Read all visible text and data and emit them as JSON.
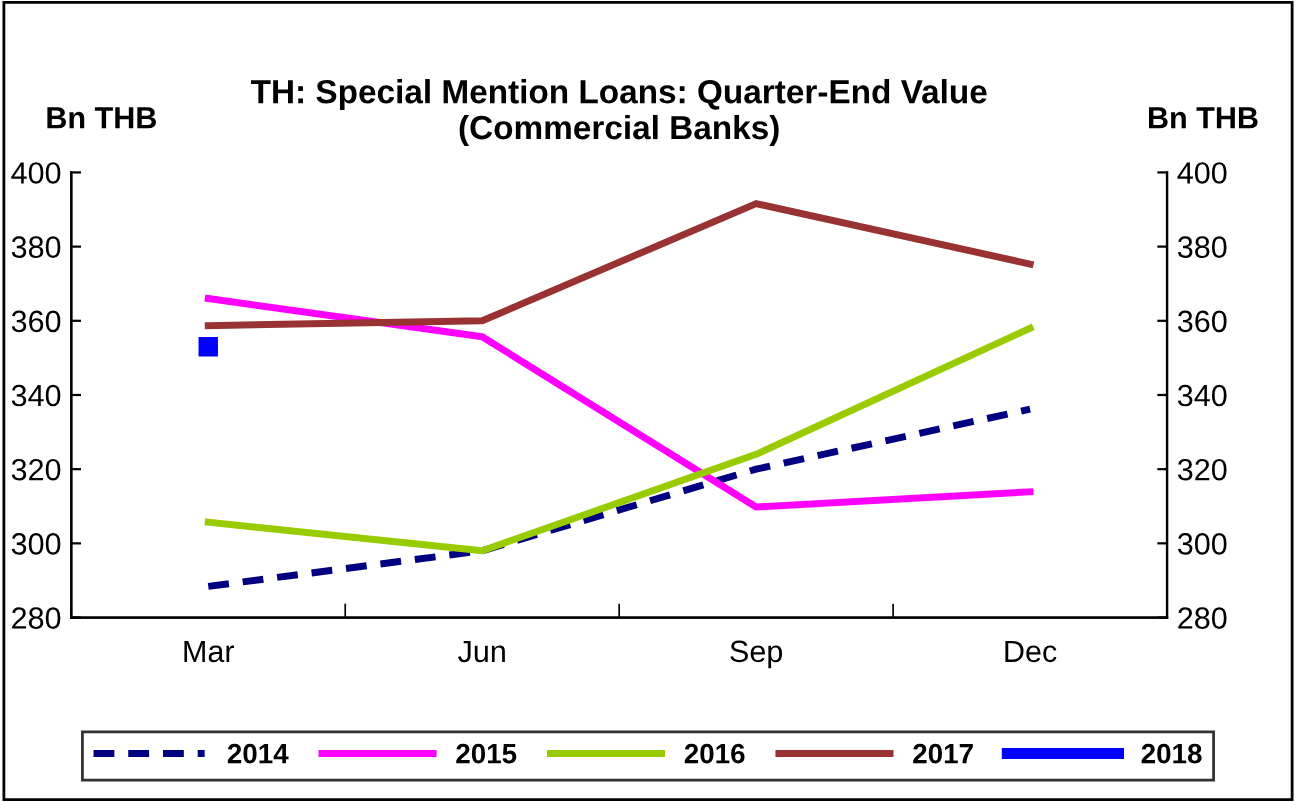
{
  "chart_data": {
    "type": "line",
    "title": "TH: Special Mention Loans: Quarter-End Value\n(Commercial Banks)",
    "ylabel": "Bn THB",
    "y2label": "Bn THB",
    "categories": [
      "Mar",
      "Jun",
      "Sep",
      "Dec"
    ],
    "series": [
      {
        "name": "2014",
        "color": "#000080",
        "line_style": "dashed",
        "values": [
          288.4,
          298,
          320,
          336.2
        ]
      },
      {
        "name": "2015",
        "color": "#ff00ff",
        "values": [
          366,
          355.7,
          309.8,
          313.9
        ]
      },
      {
        "name": "2016",
        "color": "#99cc00",
        "values": [
          305.7,
          298,
          324,
          358
        ]
      },
      {
        "name": "2017",
        "color": "#993333",
        "values": [
          358.7,
          360,
          391.6,
          375.3
        ]
      },
      {
        "name": "2018",
        "color": "#0000ff",
        "marker": "square",
        "values": [
          353,
          null,
          null,
          null
        ]
      }
    ],
    "ylim": [
      280,
      400
    ],
    "yticks": [
      280,
      300,
      320,
      340,
      360,
      380,
      400
    ],
    "y2lim": [
      280,
      400
    ],
    "y2ticks": [
      280,
      300,
      320,
      340,
      360,
      380,
      400
    ],
    "grid": false,
    "legend": "bottom",
    "marker": "none",
    "line_style": "solid"
  }
}
